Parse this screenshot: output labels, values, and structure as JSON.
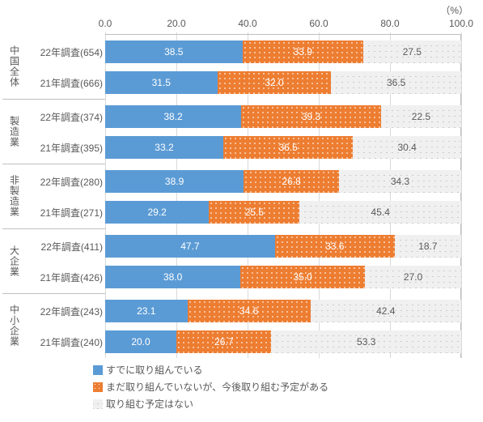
{
  "chart": {
    "unit_label": "（%）",
    "ticks": [
      0.0,
      20.0,
      40.0,
      60.0,
      80.0,
      100.0
    ],
    "tick_labels": [
      "0.0",
      "20.0",
      "40.0",
      "60.0",
      "80.0",
      "100.0"
    ],
    "xmax": 100.0,
    "colors": {
      "s1": "#5b9bd5",
      "s2": "#ed7d31",
      "s3_bg": "#f0f0f0",
      "s3_grid": "#bfbfbf",
      "text": "#595959",
      "gridline": "#d9d9d9"
    },
    "series": [
      {
        "key": "s1",
        "label": "すでに取り組んでいる"
      },
      {
        "key": "s2",
        "label": "まだ取り組んでいないが、今後取り組む予定がある"
      },
      {
        "key": "s3",
        "label": "取り組む予定はない"
      }
    ],
    "groups": [
      {
        "name": "中国全体",
        "rows": [
          {
            "label": "22年調査(654)",
            "values": [
              38.5,
              33.9,
              27.5
            ]
          },
          {
            "label": "21年調査(666)",
            "values": [
              31.5,
              32.0,
              36.5
            ]
          }
        ]
      },
      {
        "name": "製造業",
        "rows": [
          {
            "label": "22年調査(374)",
            "values": [
              38.2,
              39.3,
              22.5
            ]
          },
          {
            "label": "21年調査(395)",
            "values": [
              33.2,
              36.5,
              30.4
            ]
          }
        ]
      },
      {
        "name": "非製造業",
        "rows": [
          {
            "label": "22年調査(280)",
            "values": [
              38.9,
              26.8,
              34.3
            ]
          },
          {
            "label": "21年調査(271)",
            "values": [
              29.2,
              25.5,
              45.4
            ]
          }
        ]
      },
      {
        "name": "大企業",
        "rows": [
          {
            "label": "22年調査(411)",
            "values": [
              47.7,
              33.6,
              18.7
            ]
          },
          {
            "label": "21年調査(426)",
            "values": [
              38.0,
              35.0,
              27.0
            ]
          }
        ]
      },
      {
        "name": "中小企業",
        "rows": [
          {
            "label": "22年調査(243)",
            "values": [
              23.1,
              34.6,
              42.4
            ]
          },
          {
            "label": "21年調査(240)",
            "values": [
              20.0,
              26.7,
              53.3
            ]
          }
        ]
      }
    ]
  }
}
